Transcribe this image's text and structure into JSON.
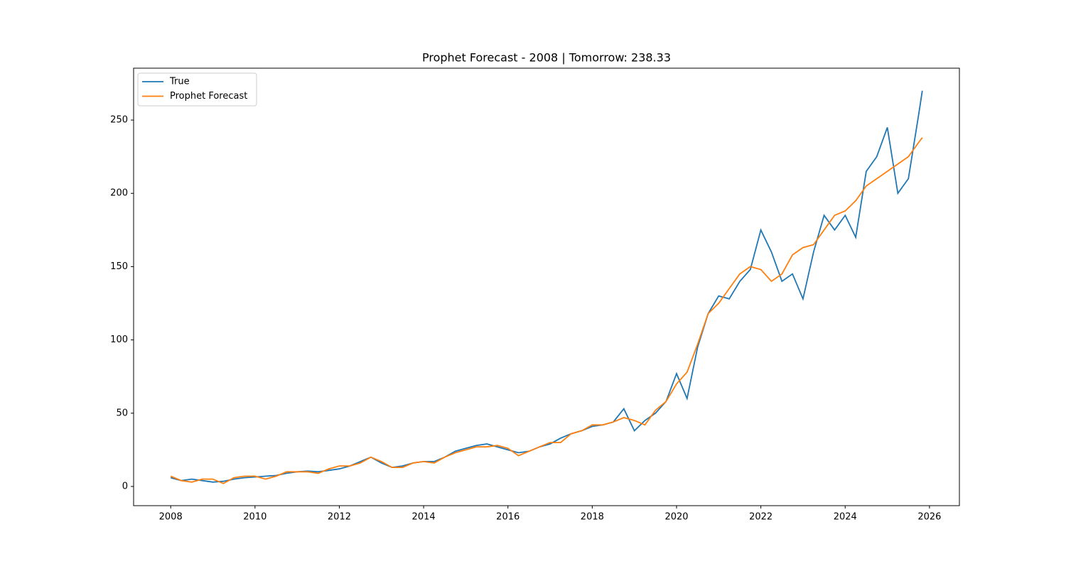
{
  "chart_data": {
    "type": "line",
    "title": "Prophet Forecast - 2008 | Tomorrow: 238.33",
    "x": [
      2008,
      2008.25,
      2008.5,
      2008.75,
      2009,
      2009.25,
      2009.5,
      2009.75,
      2010,
      2010.25,
      2010.5,
      2010.75,
      2011,
      2011.25,
      2011.5,
      2011.75,
      2012,
      2012.25,
      2012.5,
      2012.75,
      2013,
      2013.25,
      2013.5,
      2013.75,
      2014,
      2014.25,
      2014.5,
      2014.75,
      2015,
      2015.25,
      2015.5,
      2015.75,
      2016,
      2016.25,
      2016.5,
      2016.75,
      2017,
      2017.25,
      2017.5,
      2017.75,
      2018,
      2018.25,
      2018.5,
      2018.75,
      2019,
      2019.25,
      2019.5,
      2019.75,
      2020,
      2020.25,
      2020.5,
      2020.75,
      2021,
      2021.25,
      2021.5,
      2021.75,
      2022,
      2022.25,
      2022.5,
      2022.75,
      2023,
      2023.25,
      2023.5,
      2023.75,
      2024,
      2024.25,
      2024.5,
      2024.75,
      2025,
      2025.25,
      2025.5,
      2025.75,
      2025.83
    ],
    "series": [
      {
        "name": "True",
        "color": "#1f77b4",
        "values": [
          6,
          4,
          5,
          4,
          3,
          3.5,
          5,
          6,
          6.5,
          7,
          7.5,
          9,
          10,
          10.5,
          10,
          11,
          12,
          14,
          17,
          20,
          16,
          13,
          14,
          16,
          17,
          17,
          20,
          24,
          26,
          28,
          29,
          27,
          25,
          23,
          24,
          27,
          29,
          33,
          36,
          38,
          41,
          42,
          44,
          53,
          38,
          45,
          50,
          58,
          77,
          60,
          95,
          118,
          130,
          128,
          140,
          148,
          175,
          160,
          140,
          145,
          128,
          160,
          185,
          175,
          185,
          170,
          215,
          225,
          245,
          200,
          210,
          255,
          270
        ]
      },
      {
        "name": "Prophet Forecast",
        "color": "#ff7f0e",
        "values": [
          7,
          4,
          3,
          5,
          5,
          2,
          6,
          7,
          7,
          5,
          7,
          10,
          10,
          10,
          9,
          12,
          14,
          14,
          16,
          20,
          17,
          13,
          13,
          16,
          17,
          16,
          20,
          23,
          25,
          27,
          27,
          28,
          26,
          21,
          24,
          27,
          30,
          30,
          36,
          38,
          42,
          42,
          44,
          47,
          45,
          42,
          52,
          58,
          70,
          78,
          97,
          118,
          125,
          135,
          145,
          150,
          148,
          140,
          145,
          158,
          163,
          165,
          175,
          185,
          188,
          195,
          205,
          210,
          215,
          220,
          225,
          235,
          238
        ]
      }
    ],
    "xlim": [
      2007.12,
      2026.71
    ],
    "xticks": [
      2008,
      2010,
      2012,
      2014,
      2016,
      2018,
      2020,
      2022,
      2024,
      2026
    ],
    "ylim": [
      -13.1,
      285.4
    ],
    "yticks": [
      0,
      50,
      100,
      150,
      200,
      250
    ],
    "legend": "upper left"
  }
}
